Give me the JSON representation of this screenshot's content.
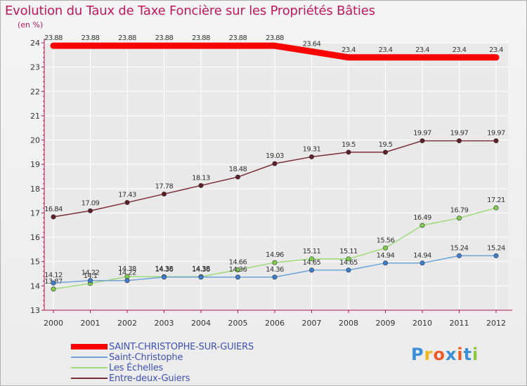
{
  "colors": {
    "title": "#c2185b",
    "axis": "#b01050",
    "grid": "#ffffff",
    "plot_bg": "#e9e9e9",
    "label": "#333333",
    "legend_text": "#3f51b5"
  },
  "logo": {
    "text": "Proxiti",
    "letters": [
      {
        "ch": "P",
        "color": "#3b8fd6"
      },
      {
        "ch": "r",
        "color": "#f1b51c"
      },
      {
        "ch": "o",
        "color": "#e95c27"
      },
      {
        "ch": "x",
        "color": "#3b8fd6"
      },
      {
        "ch": "i",
        "color": "#e95c27"
      },
      {
        "ch": "t",
        "color": "#3b8fd6"
      },
      {
        "ch": "i",
        "color": "#8cc63f"
      }
    ]
  },
  "chart_data": {
    "type": "line",
    "title": "Evolution du Taux de Taxe Foncière sur les Propriétés Bâties",
    "ylabel": "(en %)",
    "xlabel": "",
    "ylim": [
      13,
      24
    ],
    "yticks": [
      13,
      14,
      15,
      16,
      17,
      18,
      19,
      20,
      21,
      22,
      23,
      24
    ],
    "x": [
      2000,
      2001,
      2002,
      2003,
      2004,
      2005,
      2006,
      2007,
      2008,
      2009,
      2010,
      2011,
      2012
    ],
    "grid": true,
    "legend_position": "bottom-left",
    "series": [
      {
        "name": "SAINT-CHRISTOPHE-SUR-GUIERS",
        "color": "#ff0000",
        "width": 9,
        "markers": false,
        "values": [
          23.88,
          23.88,
          23.88,
          23.88,
          23.88,
          23.88,
          23.88,
          23.64,
          23.4,
          23.4,
          23.4,
          23.4,
          23.4
        ],
        "labels": [
          "23.88",
          "23.88",
          "23.88",
          "23.88",
          "23.88",
          "23.88",
          "23.88",
          "23.64",
          "23.4",
          "23.4",
          "23.4",
          "23.4",
          "23.4"
        ]
      },
      {
        "name": "Saint-Christophe",
        "color": "#6fa3d8",
        "marker_color": "#3a7fd0",
        "width": 1.5,
        "markers": true,
        "values": [
          14.12,
          14.22,
          14.22,
          14.36,
          14.36,
          14.36,
          14.36,
          14.65,
          14.65,
          14.94,
          14.94,
          15.24,
          15.24
        ],
        "labels": [
          "14.12",
          "14.22",
          "14.22",
          "14.36",
          "14.36",
          "14.36",
          "14.36",
          "14.65",
          "14.65",
          "14.94",
          "14.94",
          "15.24",
          "15.24"
        ]
      },
      {
        "name": "Les Échelles",
        "color": "#9ddb7a",
        "marker_color": "#7ed14d",
        "width": 1.5,
        "markers": true,
        "values": [
          13.87,
          14.1,
          14.38,
          14.38,
          14.38,
          14.66,
          14.96,
          15.11,
          15.11,
          15.56,
          16.49,
          16.79,
          17.21
        ],
        "labels": [
          "13.87",
          "14.1",
          "14.38",
          "14.38",
          "14.38",
          "14.66",
          "14.96",
          "15.11",
          "15.11",
          "15.56",
          "16.49",
          "16.79",
          "17.21"
        ]
      },
      {
        "name": "Entre-deux-Guiers",
        "color": "#7a2d36",
        "marker_color": "#5e1f28",
        "width": 1.5,
        "markers": true,
        "values": [
          16.84,
          17.09,
          17.43,
          17.78,
          18.13,
          18.48,
          19.03,
          19.31,
          19.5,
          19.5,
          19.97,
          19.97,
          19.97
        ],
        "labels": [
          "16.84",
          "17.09",
          "17.43",
          "17.78",
          "18.13",
          "18.48",
          "19.03",
          "19.31",
          "19.5",
          "19.5",
          "19.97",
          "19.97",
          "19.97"
        ]
      }
    ]
  }
}
